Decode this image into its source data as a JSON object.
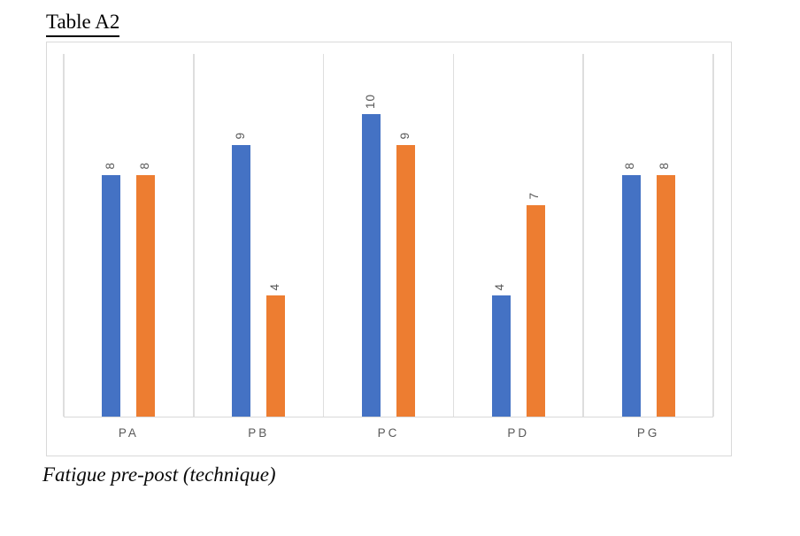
{
  "title": "Table A2",
  "caption": "Fatigue pre-post (technique)",
  "colors": {
    "series1": "#4472C4",
    "series2": "#ED7D31",
    "gridline": "#DEDEDE",
    "frame_border": "#D9D9D9",
    "label_gray": "#595959",
    "text_black": "#000000"
  },
  "chart_data": {
    "type": "bar",
    "title": "Table A2",
    "caption": "Fatigue pre-post (technique)",
    "categories": [
      "PA",
      "PB",
      "PC",
      "PD",
      "PG"
    ],
    "series": [
      {
        "color": "#4472C4",
        "values": [
          8,
          9,
          10,
          4,
          8
        ]
      },
      {
        "color": "#ED7D31",
        "values": [
          8,
          4,
          9,
          7,
          8
        ]
      }
    ],
    "data_labels": [
      [
        "8",
        "9",
        "10",
        "4",
        "8"
      ],
      [
        "8",
        "4",
        "9",
        "7",
        "8"
      ]
    ],
    "data_label_rotation_deg": -90,
    "xlabel": "",
    "ylabel": "",
    "ylim": [
      0,
      12
    ],
    "y_axis_visible": false,
    "gridlines": "vertical category separators",
    "legend_position": "none"
  }
}
